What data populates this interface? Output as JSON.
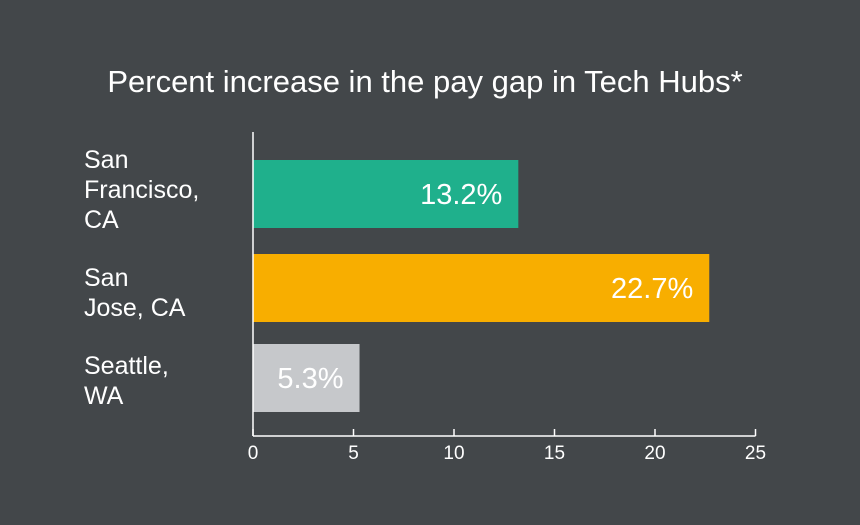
{
  "chart_data": {
    "type": "bar",
    "orientation": "horizontal",
    "title": "Percent increase in the pay gap in Tech Hubs*",
    "categories": [
      [
        "San",
        "Francisco,",
        "CA"
      ],
      [
        "San",
        "Jose, CA"
      ],
      [
        "Seattle,",
        "WA"
      ]
    ],
    "values": [
      13.2,
      22.7,
      5.3
    ],
    "value_labels": [
      "13.2%",
      "22.7%",
      "5.3%"
    ],
    "colors": [
      "#1fb08c",
      "#f8ae00",
      "#c6c8cb"
    ],
    "xlim": [
      0,
      25
    ],
    "ticks": [
      0,
      5,
      10,
      15,
      20,
      25
    ],
    "tick_labels": [
      "0",
      "5",
      "10",
      "15",
      "20",
      "25"
    ],
    "xlabel": "",
    "ylabel": "",
    "grid": false,
    "legend": "none"
  },
  "colors": {
    "background": "#43474a",
    "text": "#ffffff",
    "axis": "#ffffff"
  }
}
